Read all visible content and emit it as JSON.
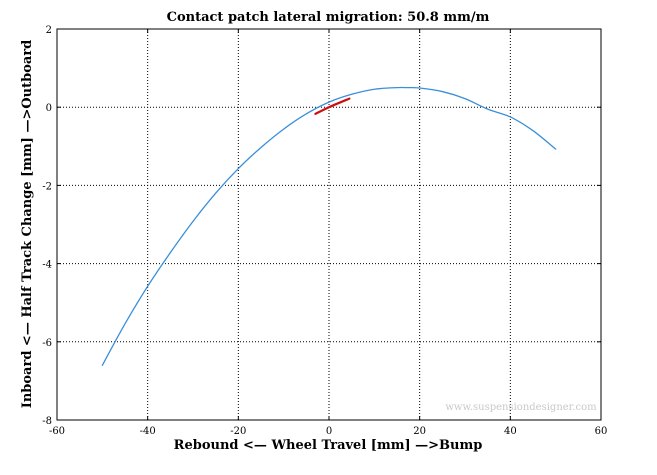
{
  "chart_data": {
    "type": "line",
    "title": "Contact patch lateral migration: 50.8 mm/m",
    "xlabel": "Rebound <— Wheel Travel [mm] —>Bump",
    "ylabel": "Inboard <— Half Track Change [mm] —>Outboard",
    "xlim": [
      -60,
      60
    ],
    "ylim": [
      -8,
      2
    ],
    "xticks": [
      -60,
      -40,
      -20,
      0,
      20,
      40,
      60
    ],
    "yticks": [
      -8,
      -6,
      -4,
      -2,
      0,
      2
    ],
    "xtick_labels": [
      "-60",
      "-40",
      "-20",
      "0",
      "20",
      "40",
      "60"
    ],
    "ytick_labels": [
      "-8",
      "-6",
      "-4",
      "-2",
      "0",
      "2"
    ],
    "grid": true,
    "grid_style": "dotted",
    "series": [
      {
        "color": "#3a8fd8",
        "x": [
          -50,
          -45,
          -40,
          -35,
          -30,
          -25,
          -20,
          -15,
          -10,
          -5,
          0,
          5,
          10,
          15,
          17.5,
          20,
          25,
          30,
          35,
          40,
          45,
          50
        ],
        "y": [
          -6.6,
          -5.54,
          -4.58,
          -3.72,
          -2.92,
          -2.2,
          -1.57,
          -1.03,
          -0.56,
          -0.17,
          0.13,
          0.33,
          0.46,
          0.5,
          0.5,
          0.49,
          0.4,
          0.22,
          -0.05,
          -0.25,
          -0.6,
          -1.07
        ]
      },
      {
        "color": "#cc1111",
        "x": [
          -3,
          0,
          4.5
        ],
        "y": [
          -0.17,
          0.0,
          0.22
        ]
      }
    ],
    "watermark": "www.suspensiondesigner.com"
  }
}
